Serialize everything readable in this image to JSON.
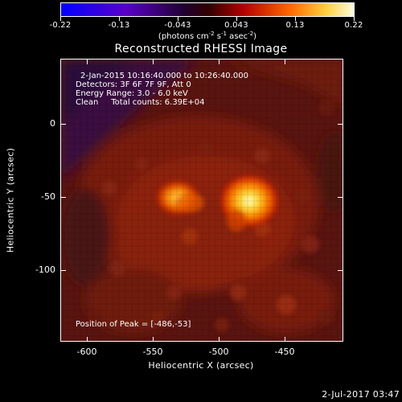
{
  "colorbar": {
    "ticks": [
      "-0.22",
      "-0.13",
      "-0.043",
      "0.043",
      "0.13",
      "0.22"
    ],
    "units_prefix": "(photons cm",
    "units_exp1": "-2",
    "units_mid1": " s",
    "units_exp2": "-1",
    "units_mid2": " asec",
    "units_exp3": "-2",
    "units_suffix": ")"
  },
  "title": "Reconstructed RHESSI Image",
  "info": {
    "line1": "2-Jan-2015 10:16:40.000 to 10:26:40.000",
    "line2": "Detectors: 3F 6F 7F 9F, Att 0",
    "line3": "Energy Range: 3.0 - 6.0 keV",
    "line4": "Clean     Total counts: 6.39E+04"
  },
  "peak": "Position of Peak = [-486,-53]",
  "axes": {
    "x_title": "Heliocentric X (arcsec)",
    "y_title": "Heliocentric Y (arcsec)",
    "x_ticks": [
      "-600",
      "-550",
      "-500",
      "-450"
    ],
    "y_ticks": [
      "0",
      "-50",
      "-100"
    ]
  },
  "date_stamp": "2-Jul-2017 03:47",
  "colors": {
    "background": "#000000",
    "frame": "#ffffff",
    "colormap": [
      "#0000ff",
      "#6a00b0",
      "#000000",
      "#c80000",
      "#ff7000",
      "#ffff80",
      "#ffffff"
    ]
  }
}
